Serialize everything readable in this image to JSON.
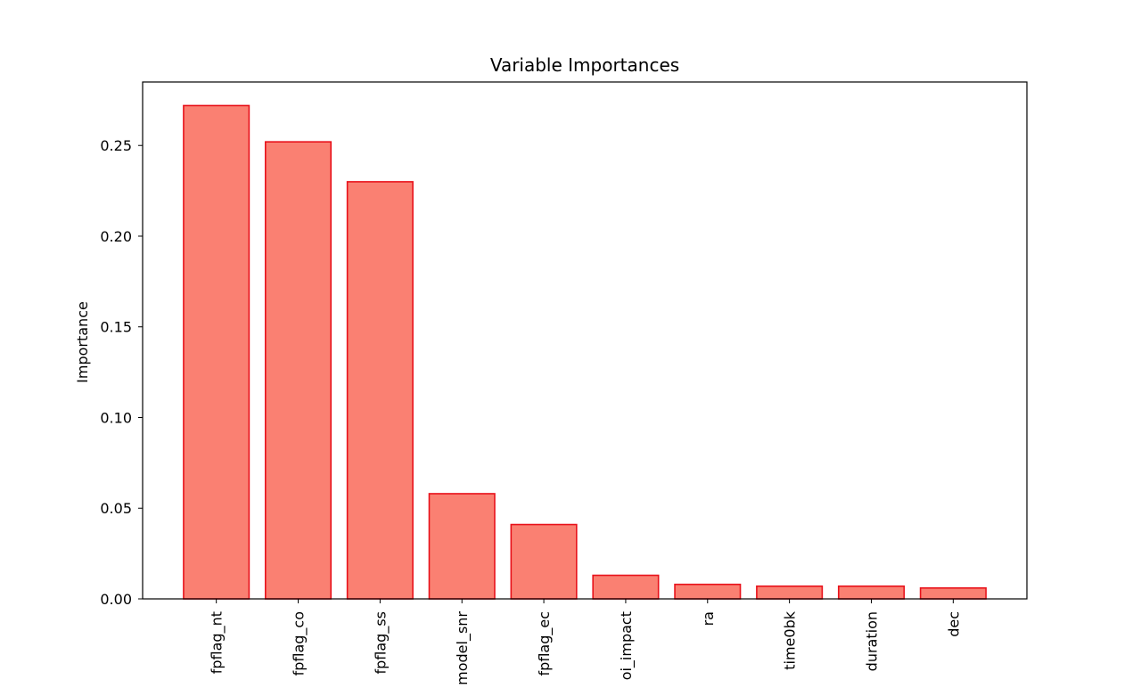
{
  "chart_data": {
    "type": "bar",
    "title": "Variable Importances",
    "xlabel": "",
    "ylabel": "Importance",
    "categories": [
      "fpflag_nt",
      "fpflag_co",
      "fpflag_ss",
      "model_snr",
      "fpflag_ec",
      "oi_impact",
      "ra",
      "time0bk",
      "duration",
      "dec"
    ],
    "values": [
      0.272,
      0.252,
      0.23,
      0.058,
      0.041,
      0.013,
      0.008,
      0.007,
      0.007,
      0.006
    ],
    "ylim": [
      0,
      0.285
    ],
    "yticks": [
      0.0,
      0.05,
      0.1,
      0.15,
      0.2,
      0.25
    ],
    "ytick_labels": [
      "0.00",
      "0.05",
      "0.10",
      "0.15",
      "0.20",
      "0.25"
    ],
    "grid": false,
    "legend": "none",
    "colors": {
      "bar_fill": "#fa8072",
      "bar_edge": "#e8121b",
      "axes": "#000000"
    }
  }
}
